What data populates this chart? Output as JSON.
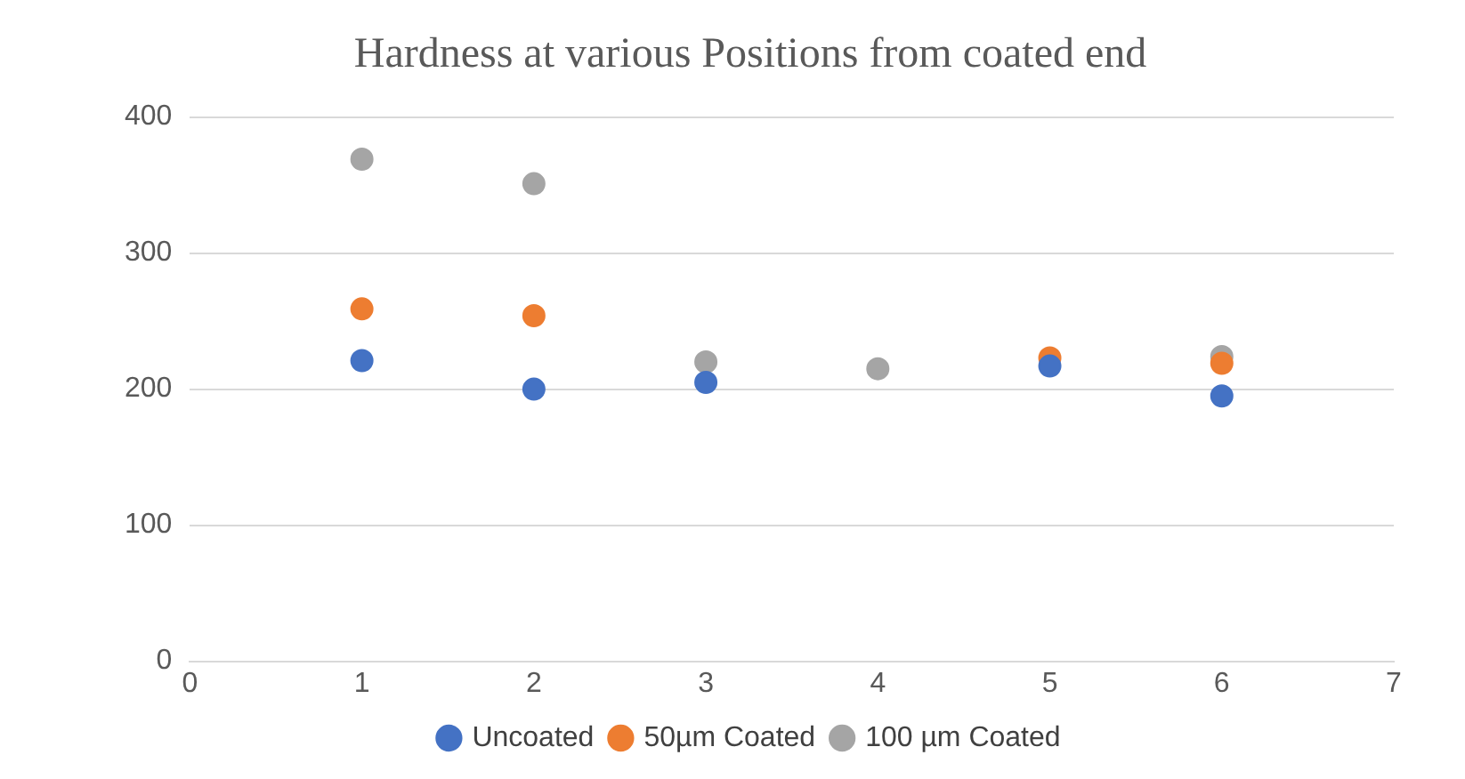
{
  "chart_data": {
    "type": "scatter",
    "title": "Hardness at various Positions from coated end",
    "x": [
      1,
      2,
      3,
      4,
      5,
      6
    ],
    "series": [
      {
        "name": "Uncoated",
        "color": "#4472c4",
        "values": [
          221,
          200,
          205,
          null,
          217,
          195
        ]
      },
      {
        "name": "50µm Coated",
        "color": "#ed7d31",
        "values": [
          259,
          254,
          null,
          null,
          223,
          219
        ]
      },
      {
        "name": "100 µm Coated",
        "color": "#a5a5a5",
        "values": [
          369,
          351,
          220,
          215,
          null,
          224
        ]
      }
    ],
    "xlim": [
      0,
      7
    ],
    "xticks": [
      0,
      1,
      2,
      3,
      4,
      5,
      6,
      7
    ],
    "ylim": [
      0,
      400
    ],
    "yticks": [
      0,
      100,
      200,
      300,
      400
    ],
    "grid": "y",
    "legend": "bottom",
    "marker": "circle"
  }
}
